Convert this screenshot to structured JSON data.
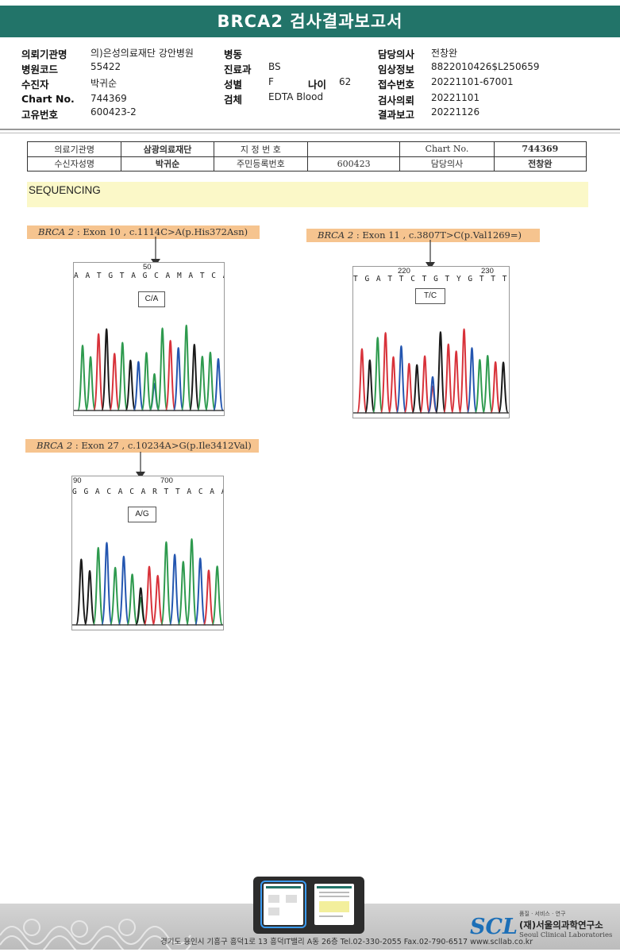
{
  "report": {
    "title": "BRCA2 검사결과보고서",
    "fields": [
      {
        "label": "의뢰기관명",
        "value": "의)은성의료재단 강안병원"
      },
      {
        "label": "병원코드",
        "value": "55422"
      },
      {
        "label": "수진자",
        "value": "박귀순"
      },
      {
        "label": "Chart No.",
        "value": "744369"
      },
      {
        "label": "고유번호",
        "value": "600423-2"
      },
      {
        "label": "병동",
        "value": ""
      },
      {
        "label": "진료과",
        "value": "BS"
      },
      {
        "label": "성별",
        "value": "F"
      },
      {
        "label": "나이",
        "value": "62"
      },
      {
        "label": "검체",
        "value": "EDTA Blood"
      },
      {
        "label": "담당의사",
        "value": "전창완"
      },
      {
        "label": "임상정보",
        "value": "8822010426$L250659"
      },
      {
        "label": "접수번호",
        "value": "20221101-67001"
      },
      {
        "label": "검사의뢰",
        "value": "20221101"
      },
      {
        "label": "결과보고",
        "value": "20221126"
      }
    ]
  },
  "info_table": {
    "row1": [
      "의료기관명",
      "삼광의료재단",
      "지 정 번 호",
      "",
      "Chart No.",
      "744369"
    ],
    "row2": [
      "수신자성명",
      "박귀순",
      "주민등록번호",
      "600423",
      "담당의사",
      "전창완"
    ]
  },
  "section": "SEQUENCING",
  "variants": [
    {
      "gene": "BRCA 2",
      "detail": " : Exon 10 , c.1114C>A(p.His372Asn)",
      "position_labels": [
        "50"
      ],
      "bases": "A A T G T A G C A M A T C A G A A C",
      "call": "C/A"
    },
    {
      "gene": "BRCA 2",
      "detail": " : Exon 11 , c.3807T>C(p.Val1269=)",
      "position_labels": [
        "220",
        "230"
      ],
      "bases": "T G A T T C T G T Y G T T T C A A T G",
      "call": "T/C"
    },
    {
      "gene": "BRCA 2",
      "detail": " : Exon 27 , c.10234A>G(p.Ile3412Val)",
      "position_labels": [
        "90",
        "700"
      ],
      "bases": "G G A C A C A R T T A C A A C T A",
      "call": "A/G"
    }
  ],
  "footer": {
    "address": "경기도 용인시 기흥구 흥덕1로 13 흥덕IT밸리 A동 26층  Tel.02-330-2055  Fax.02-790-6517  www.scllab.co.kr",
    "tagline": "품질 · 서비스 · 연구",
    "logo": "SCL",
    "org_ko": "(재)서울의과학연구소",
    "org_en": "Seoul Clinical Laboratories"
  },
  "colors": {
    "title_bg": "#227469",
    "band": "#fbf8c8",
    "label_bg": "#f6c48f",
    "base_A": "#2e9a4e",
    "base_C": "#2456b0",
    "base_G": "#1a1a1a",
    "base_T": "#d8323a"
  }
}
